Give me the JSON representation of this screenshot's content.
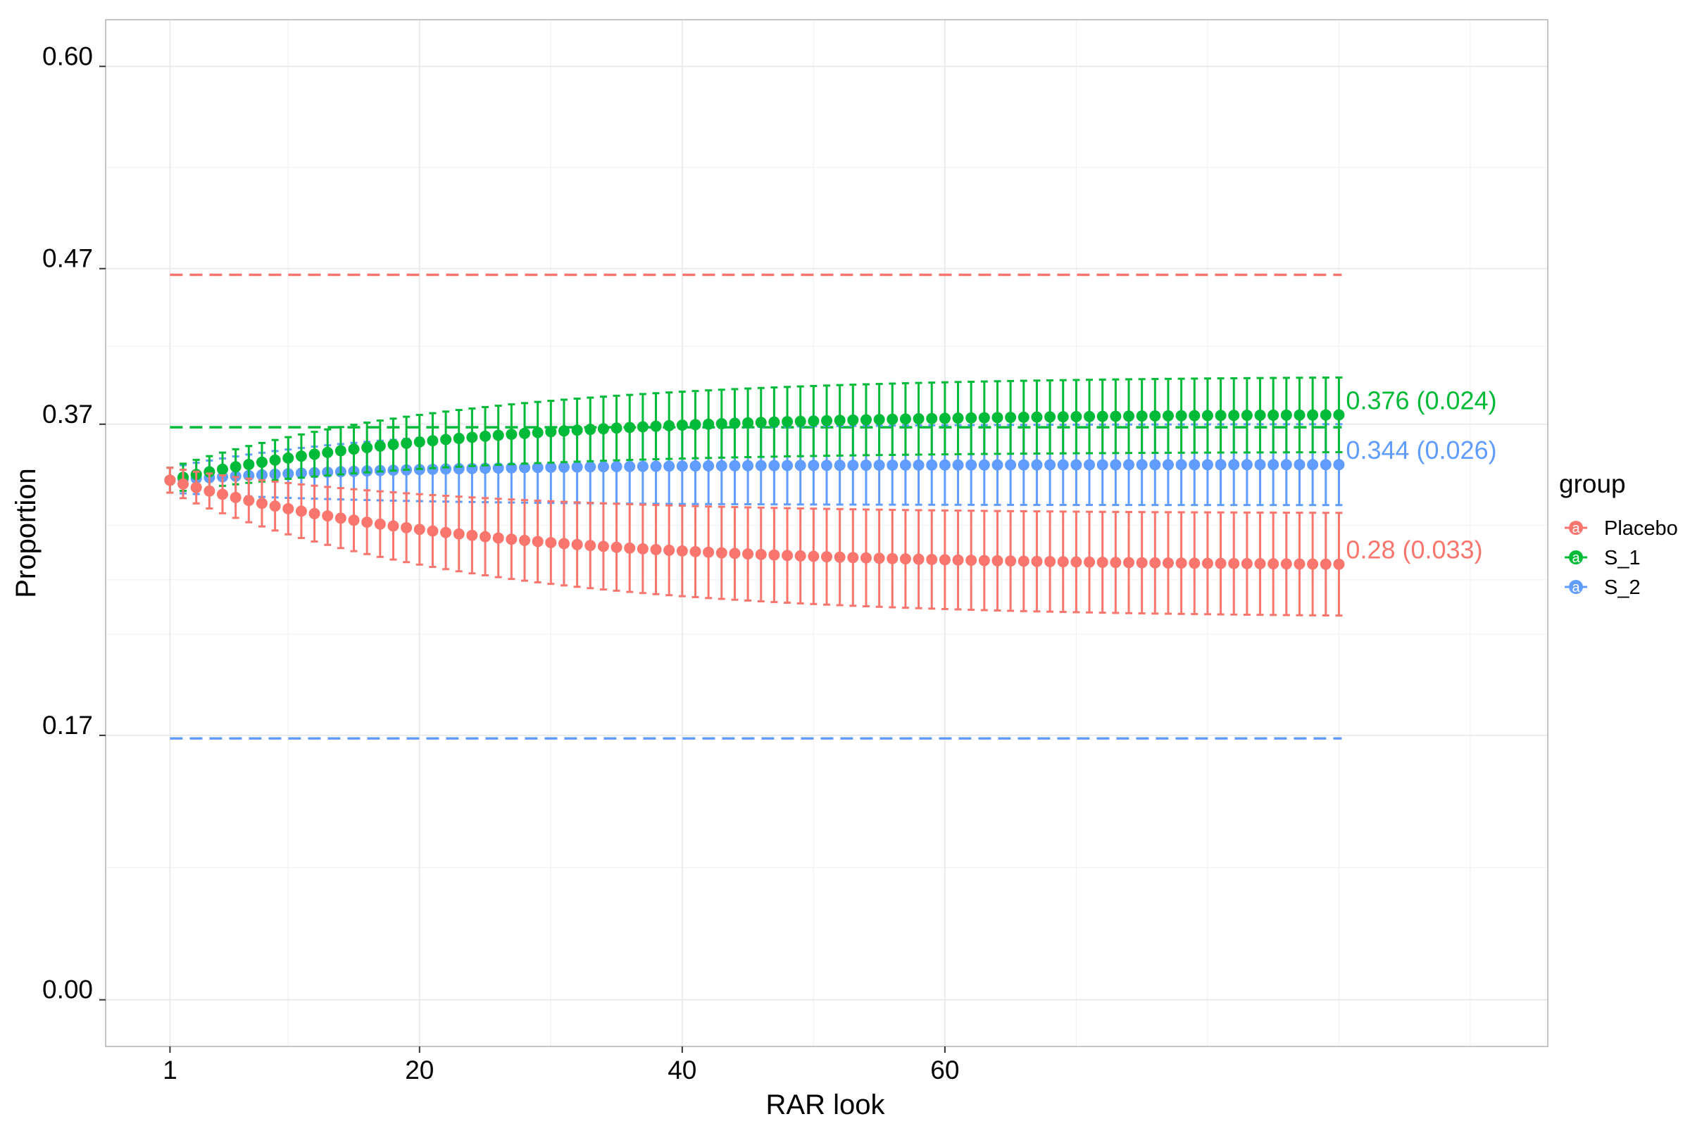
{
  "chart_data": {
    "type": "line",
    "xlabel": "RAR look",
    "ylabel": "Proportion",
    "x_range": [
      1,
      90
    ],
    "xlim": [
      -3.9,
      105.9
    ],
    "ylim": [
      -0.03,
      0.63
    ],
    "x_ticks": [
      1,
      20,
      40,
      60
    ],
    "x_minor_ticks": [
      10,
      30,
      50,
      70,
      80,
      90,
      100
    ],
    "y_ticks": [
      0.0,
      0.17,
      0.37,
      0.47,
      0.6
    ],
    "y_tick_labels": [
      "0.00",
      "0.17",
      "0.37",
      "0.47",
      "0.60"
    ],
    "y_minor_ticks": [
      0.085,
      0.235,
      0.27,
      0.305,
      0.42,
      0.535
    ],
    "grid": true,
    "start_mean": 0.334,
    "start_half_width": 0.008,
    "legend": {
      "title": "group",
      "placement": "right",
      "glyph": "a"
    },
    "series": [
      {
        "name": "Placebo",
        "color": "#F8766D",
        "reference": 0.466,
        "final_mean": 0.28,
        "final_half_width": 0.033,
        "curve_rate": 0.045,
        "end_label": "0.28 (0.033)"
      },
      {
        "name": "S_1",
        "color": "#00BA38",
        "reference": 0.368,
        "final_mean": 0.376,
        "final_half_width": 0.024,
        "curve_rate": 0.045,
        "end_label": "0.376 (0.024)"
      },
      {
        "name": "S_2",
        "color": "#619CFF",
        "reference": 0.168,
        "final_mean": 0.344,
        "final_half_width": 0.026,
        "curve_rate": 0.06,
        "end_label": "0.344 (0.026)"
      }
    ]
  }
}
